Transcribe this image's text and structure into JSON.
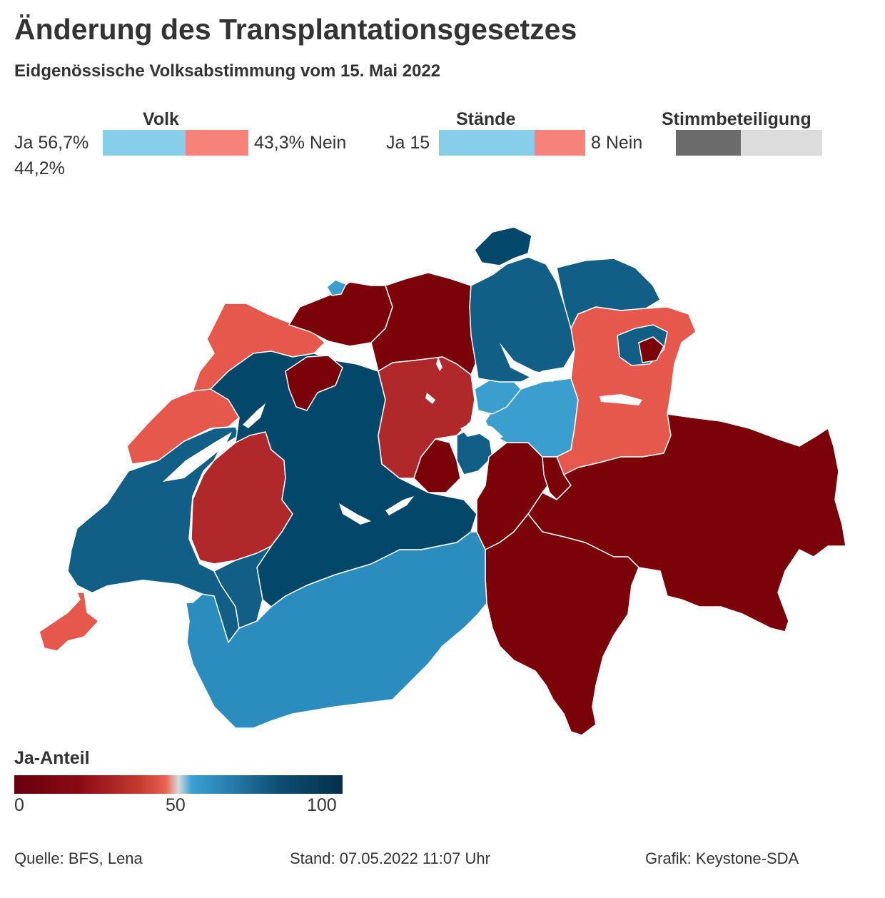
{
  "header": {
    "title": "Änderung des Transplantationsgesetzes",
    "subtitle": "Eidgenössische Volksabstimmung vom 15. Mai 2022"
  },
  "summary": {
    "volk": {
      "title": "Volk",
      "yes_label": "Ja 56,7%",
      "no_label": "43,3% Nein",
      "yes_share": 0.567,
      "yes_color": "#87ceeb",
      "no_color": "#f7827a"
    },
    "staende": {
      "title": "Stände",
      "yes_label": "Ja 15",
      "no_label": "8 Nein",
      "yes_count": 15,
      "no_count": 8,
      "yes_color": "#87ceeb",
      "no_color": "#f7827a"
    },
    "turnout": {
      "title": "Stimmbeteiligung",
      "value_label": "44,2%",
      "share": 0.442,
      "fill_color": "#6b6b6b",
      "rest_color": "#dcdcdc"
    }
  },
  "map": {
    "region": "Schweiz",
    "colors": {
      "very_low": "#7b0209",
      "low": "#b0282a",
      "mid_low": "#e5584b",
      "mid_high": "#2b8cbe",
      "light_blue": "#3a9ecf",
      "high": "#115f86",
      "very_high": "#03486a"
    }
  },
  "legend": {
    "title": "Ja-Anteil",
    "ticks": [
      "0",
      "50",
      "100"
    ]
  },
  "footer": {
    "source": "Quelle: BFS, Lena",
    "timestamp": "Stand: 07.05.2022 11:07 Uhr",
    "credit": "Grafik: Keystone-SDA"
  }
}
